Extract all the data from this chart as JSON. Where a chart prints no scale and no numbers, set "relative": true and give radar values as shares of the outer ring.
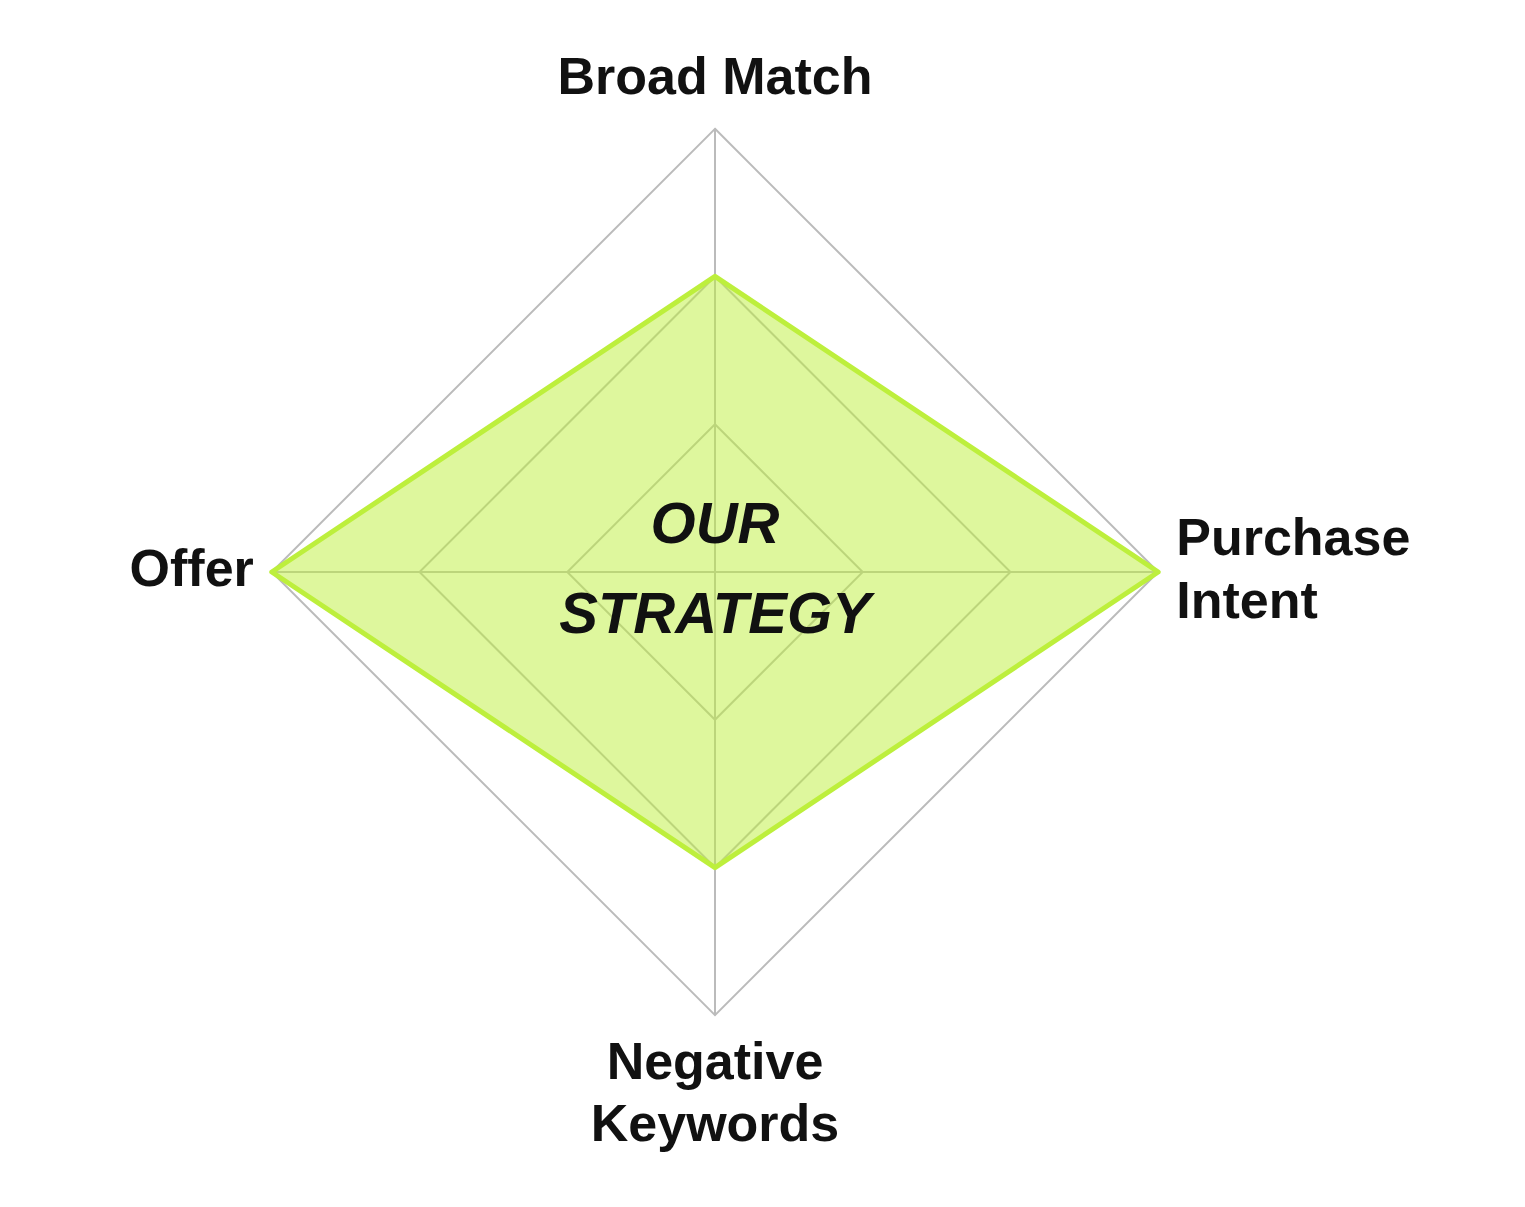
{
  "chart_data": {
    "type": "radar",
    "relative": true,
    "categories": [
      "Broad Match",
      "Purchase Intent",
      "Negative Keywords",
      "Offer"
    ],
    "series": [
      {
        "color": "#bdef3c",
        "values": [
          0.667,
          1,
          0.667,
          1
        ]
      }
    ],
    "annotations": [
      "OUR STRATEGY"
    ],
    "legend": false,
    "grid": true,
    "line_style": "solid",
    "marker": "none"
  }
}
